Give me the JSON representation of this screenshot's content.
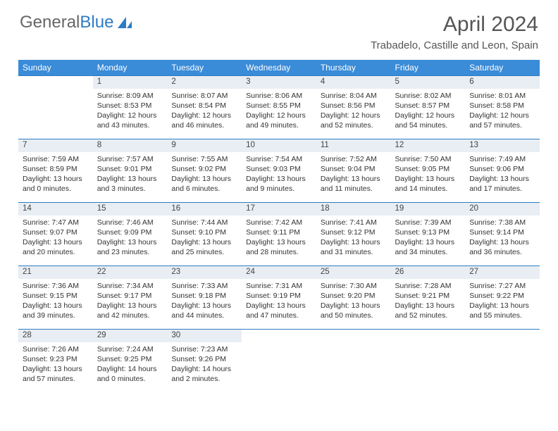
{
  "brand": {
    "part1": "General",
    "part2": "Blue"
  },
  "title": "April 2024",
  "location": "Trabadelo, Castille and Leon, Spain",
  "colors": {
    "header_bg": "#3a8bd8",
    "rule": "#2e7cc4",
    "dayrow_bg": "#e8eef3",
    "text": "#333333",
    "brand_gray": "#666666",
    "brand_blue": "#2e7cc4"
  },
  "days_of_week": [
    "Sunday",
    "Monday",
    "Tuesday",
    "Wednesday",
    "Thursday",
    "Friday",
    "Saturday"
  ],
  "first_weekday": 1,
  "days_in_month": 30,
  "cells": {
    "1": {
      "sunrise": "8:09 AM",
      "sunset": "8:53 PM",
      "daylight": "12 hours and 43 minutes."
    },
    "2": {
      "sunrise": "8:07 AM",
      "sunset": "8:54 PM",
      "daylight": "12 hours and 46 minutes."
    },
    "3": {
      "sunrise": "8:06 AM",
      "sunset": "8:55 PM",
      "daylight": "12 hours and 49 minutes."
    },
    "4": {
      "sunrise": "8:04 AM",
      "sunset": "8:56 PM",
      "daylight": "12 hours and 52 minutes."
    },
    "5": {
      "sunrise": "8:02 AM",
      "sunset": "8:57 PM",
      "daylight": "12 hours and 54 minutes."
    },
    "6": {
      "sunrise": "8:01 AM",
      "sunset": "8:58 PM",
      "daylight": "12 hours and 57 minutes."
    },
    "7": {
      "sunrise": "7:59 AM",
      "sunset": "8:59 PM",
      "daylight": "13 hours and 0 minutes."
    },
    "8": {
      "sunrise": "7:57 AM",
      "sunset": "9:01 PM",
      "daylight": "13 hours and 3 minutes."
    },
    "9": {
      "sunrise": "7:55 AM",
      "sunset": "9:02 PM",
      "daylight": "13 hours and 6 minutes."
    },
    "10": {
      "sunrise": "7:54 AM",
      "sunset": "9:03 PM",
      "daylight": "13 hours and 9 minutes."
    },
    "11": {
      "sunrise": "7:52 AM",
      "sunset": "9:04 PM",
      "daylight": "13 hours and 11 minutes."
    },
    "12": {
      "sunrise": "7:50 AM",
      "sunset": "9:05 PM",
      "daylight": "13 hours and 14 minutes."
    },
    "13": {
      "sunrise": "7:49 AM",
      "sunset": "9:06 PM",
      "daylight": "13 hours and 17 minutes."
    },
    "14": {
      "sunrise": "7:47 AM",
      "sunset": "9:07 PM",
      "daylight": "13 hours and 20 minutes."
    },
    "15": {
      "sunrise": "7:46 AM",
      "sunset": "9:09 PM",
      "daylight": "13 hours and 23 minutes."
    },
    "16": {
      "sunrise": "7:44 AM",
      "sunset": "9:10 PM",
      "daylight": "13 hours and 25 minutes."
    },
    "17": {
      "sunrise": "7:42 AM",
      "sunset": "9:11 PM",
      "daylight": "13 hours and 28 minutes."
    },
    "18": {
      "sunrise": "7:41 AM",
      "sunset": "9:12 PM",
      "daylight": "13 hours and 31 minutes."
    },
    "19": {
      "sunrise": "7:39 AM",
      "sunset": "9:13 PM",
      "daylight": "13 hours and 34 minutes."
    },
    "20": {
      "sunrise": "7:38 AM",
      "sunset": "9:14 PM",
      "daylight": "13 hours and 36 minutes."
    },
    "21": {
      "sunrise": "7:36 AM",
      "sunset": "9:15 PM",
      "daylight": "13 hours and 39 minutes."
    },
    "22": {
      "sunrise": "7:34 AM",
      "sunset": "9:17 PM",
      "daylight": "13 hours and 42 minutes."
    },
    "23": {
      "sunrise": "7:33 AM",
      "sunset": "9:18 PM",
      "daylight": "13 hours and 44 minutes."
    },
    "24": {
      "sunrise": "7:31 AM",
      "sunset": "9:19 PM",
      "daylight": "13 hours and 47 minutes."
    },
    "25": {
      "sunrise": "7:30 AM",
      "sunset": "9:20 PM",
      "daylight": "13 hours and 50 minutes."
    },
    "26": {
      "sunrise": "7:28 AM",
      "sunset": "9:21 PM",
      "daylight": "13 hours and 52 minutes."
    },
    "27": {
      "sunrise": "7:27 AM",
      "sunset": "9:22 PM",
      "daylight": "13 hours and 55 minutes."
    },
    "28": {
      "sunrise": "7:26 AM",
      "sunset": "9:23 PM",
      "daylight": "13 hours and 57 minutes."
    },
    "29": {
      "sunrise": "7:24 AM",
      "sunset": "9:25 PM",
      "daylight": "14 hours and 0 minutes."
    },
    "30": {
      "sunrise": "7:23 AM",
      "sunset": "9:26 PM",
      "daylight": "14 hours and 2 minutes."
    }
  },
  "labels": {
    "sunrise": "Sunrise:",
    "sunset": "Sunset:",
    "daylight": "Daylight:"
  }
}
